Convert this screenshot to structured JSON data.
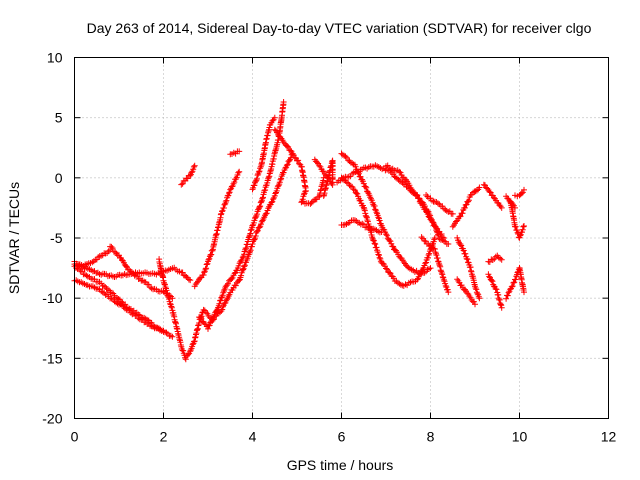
{
  "chart_data": {
    "type": "scatter",
    "title": "Day 263 of 2014, Sidereal Day-to-day VTEC variation (SDTVAR) for receiver clgo",
    "xlabel": "GPS time / hours",
    "ylabel": "SDTVAR / TECUs",
    "xlim": [
      0,
      12
    ],
    "ylim": [
      -20,
      10
    ],
    "xticks": [
      0,
      2,
      4,
      6,
      8,
      10,
      12
    ],
    "yticks": [
      -20,
      -15,
      -10,
      -5,
      0,
      5,
      10
    ],
    "grid": true,
    "marker": "+",
    "marker_color": "#ff0000",
    "series_tracks": [
      [
        [
          0.0,
          -7.2
        ],
        [
          0.3,
          -7.6
        ],
        [
          0.6,
          -8.0
        ],
        [
          0.9,
          -8.2
        ],
        [
          1.2,
          -8.0
        ],
        [
          1.5,
          -7.9
        ],
        [
          1.8,
          -8.0
        ],
        [
          2.0,
          -7.8
        ],
        [
          2.2,
          -7.5
        ],
        [
          2.4,
          -7.8
        ],
        [
          2.6,
          -8.5
        ]
      ],
      [
        [
          0.0,
          -7.4
        ],
        [
          0.3,
          -8.2
        ],
        [
          0.6,
          -8.8
        ],
        [
          0.9,
          -9.8
        ],
        [
          1.2,
          -10.8
        ],
        [
          1.5,
          -11.5
        ],
        [
          1.8,
          -12.3
        ],
        [
          2.0,
          -12.8
        ],
        [
          2.2,
          -13.2
        ]
      ],
      [
        [
          0.0,
          -8.5
        ],
        [
          0.3,
          -8.9
        ],
        [
          0.6,
          -9.4
        ],
        [
          0.9,
          -10.2
        ],
        [
          1.2,
          -11.0
        ],
        [
          1.5,
          -11.8
        ],
        [
          1.8,
          -12.5
        ],
        [
          2.0,
          -12.7
        ]
      ],
      [
        [
          0.0,
          -7.0
        ],
        [
          0.2,
          -7.3
        ],
        [
          0.4,
          -7.0
        ],
        [
          0.6,
          -6.5
        ],
        [
          0.8,
          -6.0
        ]
      ],
      [
        [
          0.8,
          -5.7
        ],
        [
          1.0,
          -6.5
        ],
        [
          1.2,
          -7.6
        ],
        [
          1.5,
          -8.5
        ],
        [
          1.8,
          -9.3
        ],
        [
          2.0,
          -9.5
        ],
        [
          2.2,
          -10.0
        ]
      ],
      [
        [
          1.9,
          -6.8
        ],
        [
          2.0,
          -8.5
        ],
        [
          2.1,
          -9.8
        ],
        [
          2.2,
          -11.0
        ],
        [
          2.3,
          -12.5
        ],
        [
          2.4,
          -14.0
        ],
        [
          2.5,
          -15.0
        ],
        [
          2.6,
          -14.5
        ],
        [
          2.7,
          -13.5
        ],
        [
          2.8,
          -12.0
        ],
        [
          2.9,
          -11.0
        ],
        [
          3.1,
          -11.8
        ],
        [
          3.3,
          -11.0
        ],
        [
          3.5,
          -9.5
        ],
        [
          3.7,
          -8.5
        ],
        [
          3.9,
          -6.5
        ],
        [
          4.1,
          -4.5
        ],
        [
          4.3,
          -3.0
        ],
        [
          4.5,
          -1.5
        ],
        [
          4.7,
          0.5
        ],
        [
          4.9,
          2.0
        ]
      ],
      [
        [
          2.4,
          -0.5
        ],
        [
          2.6,
          0.2
        ],
        [
          2.7,
          1.0
        ]
      ],
      [
        [
          2.7,
          -9.0
        ],
        [
          2.9,
          -8.0
        ],
        [
          3.1,
          -6.0
        ],
        [
          3.3,
          -3.0
        ],
        [
          3.5,
          -1.0
        ],
        [
          3.7,
          0.5
        ]
      ],
      [
        [
          3.5,
          1.9
        ],
        [
          3.7,
          2.2
        ]
      ],
      [
        [
          2.8,
          -11.5
        ],
        [
          3.0,
          -12.5
        ],
        [
          3.2,
          -11.0
        ],
        [
          3.4,
          -9.0
        ],
        [
          3.6,
          -8.0
        ],
        [
          3.8,
          -6.5
        ],
        [
          4.0,
          -4.0
        ],
        [
          4.2,
          -2.0
        ],
        [
          4.4,
          0.5
        ],
        [
          4.6,
          3.5
        ],
        [
          4.7,
          6.3
        ]
      ],
      [
        [
          4.0,
          -1.0
        ],
        [
          4.2,
          1.0
        ],
        [
          4.3,
          3.0
        ],
        [
          4.4,
          4.5
        ],
        [
          4.5,
          5.0
        ]
      ],
      [
        [
          4.5,
          4.0
        ],
        [
          4.7,
          3.0
        ],
        [
          4.9,
          2.0
        ],
        [
          5.1,
          1.0
        ],
        [
          5.2,
          -1.0
        ],
        [
          5.1,
          -2.0
        ],
        [
          5.3,
          -2.2
        ],
        [
          5.5,
          -1.5
        ],
        [
          5.6,
          0.0
        ]
      ],
      [
        [
          5.4,
          1.5
        ],
        [
          5.6,
          0.5
        ],
        [
          5.8,
          -0.5
        ],
        [
          5.8,
          1.5
        ],
        [
          5.6,
          -1.5
        ]
      ],
      [
        [
          5.9,
          -0.3
        ],
        [
          6.2,
          0.2
        ],
        [
          6.5,
          0.8
        ],
        [
          6.8,
          1.0
        ],
        [
          7.1,
          0.5
        ],
        [
          7.4,
          -0.5
        ],
        [
          7.7,
          -1.5
        ],
        [
          8.0,
          -3.5
        ],
        [
          8.3,
          -5.0
        ]
      ],
      [
        [
          6.0,
          2.0
        ],
        [
          6.3,
          1.0
        ],
        [
          6.5,
          -0.5
        ],
        [
          6.7,
          -2.0
        ],
        [
          6.9,
          -4.0
        ],
        [
          7.2,
          -6.0
        ],
        [
          7.5,
          -7.5
        ],
        [
          7.8,
          -8.0
        ],
        [
          8.0,
          -7.5
        ]
      ],
      [
        [
          6.0,
          0.0
        ],
        [
          6.3,
          -1.0
        ],
        [
          6.5,
          -2.5
        ],
        [
          6.7,
          -5.0
        ],
        [
          6.9,
          -7.0
        ],
        [
          7.2,
          -8.5
        ],
        [
          7.4,
          -9.0
        ],
        [
          7.7,
          -8.5
        ],
        [
          7.9,
          -7.0
        ],
        [
          8.1,
          -5.0
        ]
      ],
      [
        [
          6.0,
          -4.0
        ],
        [
          6.3,
          -3.5
        ],
        [
          6.6,
          -4.2
        ],
        [
          6.9,
          -4.5
        ]
      ],
      [
        [
          7.0,
          1.0
        ],
        [
          7.3,
          0.5
        ],
        [
          7.6,
          -1.0
        ],
        [
          7.9,
          -2.5
        ],
        [
          8.1,
          -4.0
        ],
        [
          8.2,
          -5.0
        ],
        [
          8.4,
          -5.5
        ]
      ],
      [
        [
          7.8,
          -5.0
        ],
        [
          8.1,
          -6.0
        ],
        [
          8.3,
          -8.5
        ],
        [
          8.4,
          -9.5
        ]
      ],
      [
        [
          7.9,
          -1.5
        ],
        [
          8.1,
          -2.0
        ],
        [
          8.3,
          -2.5
        ],
        [
          8.5,
          -3.0
        ]
      ],
      [
        [
          8.6,
          -5.0
        ],
        [
          8.8,
          -6.5
        ],
        [
          8.9,
          -7.5
        ],
        [
          9.0,
          -9.0
        ],
        [
          9.1,
          -10.0
        ]
      ],
      [
        [
          8.5,
          -4.0
        ],
        [
          8.7,
          -3.0
        ],
        [
          8.9,
          -1.5
        ],
        [
          9.1,
          -0.8
        ]
      ],
      [
        [
          8.6,
          -8.5
        ],
        [
          8.8,
          -9.5
        ],
        [
          9.0,
          -10.5
        ]
      ],
      [
        [
          9.2,
          -0.5
        ],
        [
          9.4,
          -1.5
        ],
        [
          9.6,
          -2.5
        ]
      ],
      [
        [
          9.3,
          -8.0
        ],
        [
          9.5,
          -9.5
        ],
        [
          9.6,
          -10.8
        ]
      ],
      [
        [
          9.3,
          -7.0
        ],
        [
          9.5,
          -6.5
        ],
        [
          9.6,
          -6.8
        ]
      ],
      [
        [
          9.7,
          -10.0
        ],
        [
          9.9,
          -8.5
        ],
        [
          10.0,
          -7.5
        ],
        [
          10.1,
          -9.5
        ]
      ],
      [
        [
          9.8,
          -2.0
        ],
        [
          9.9,
          -4.0
        ],
        [
          10.0,
          -5.0
        ],
        [
          10.1,
          -4.0
        ]
      ],
      [
        [
          9.9,
          -1.5
        ],
        [
          10.0,
          -1.5
        ],
        [
          10.1,
          -1.0
        ]
      ],
      [
        [
          9.7,
          -1.5
        ],
        [
          9.9,
          -2.5
        ]
      ]
    ]
  }
}
